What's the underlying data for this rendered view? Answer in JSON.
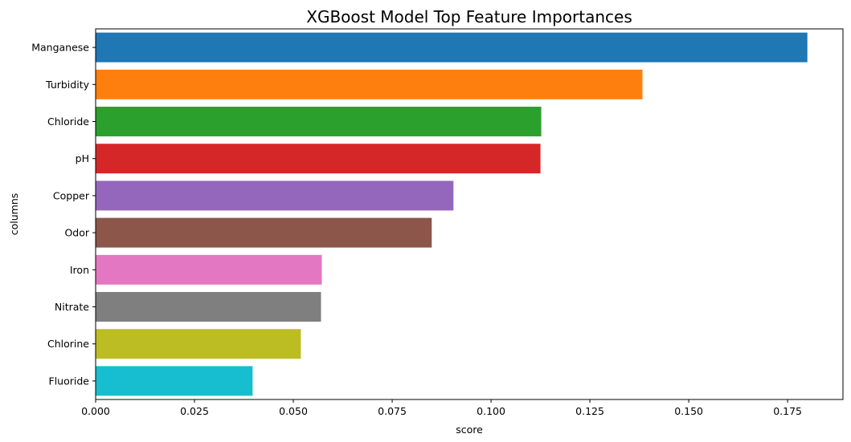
{
  "chart_data": {
    "type": "bar",
    "orientation": "horizontal",
    "title": "XGBoost Model Top Feature Importances",
    "xlabel": "score",
    "ylabel": "columns",
    "categories": [
      "Manganese",
      "Turbidity",
      "Chloride",
      "pH",
      "Copper",
      "Odor",
      "Iron",
      "Nitrate",
      "Chlorine",
      "Fluoride"
    ],
    "values": [
      0.18,
      0.1383,
      0.1127,
      0.1125,
      0.0905,
      0.085,
      0.0572,
      0.057,
      0.0519,
      0.0397
    ],
    "colors": [
      "#1f77b4",
      "#ff7f0e",
      "#2ca02c",
      "#d62728",
      "#9467bd",
      "#8c564b",
      "#e377c2",
      "#7f7f7f",
      "#bcbd22",
      "#17becf"
    ],
    "xlim": [
      0,
      0.189
    ],
    "xticks": [
      0.0,
      0.025,
      0.05,
      0.075,
      0.1,
      0.125,
      0.15,
      0.175
    ],
    "xtick_labels": [
      "0.000",
      "0.025",
      "0.050",
      "0.075",
      "0.100",
      "0.125",
      "0.150",
      "0.175"
    ],
    "grid": false,
    "legend": "none"
  }
}
